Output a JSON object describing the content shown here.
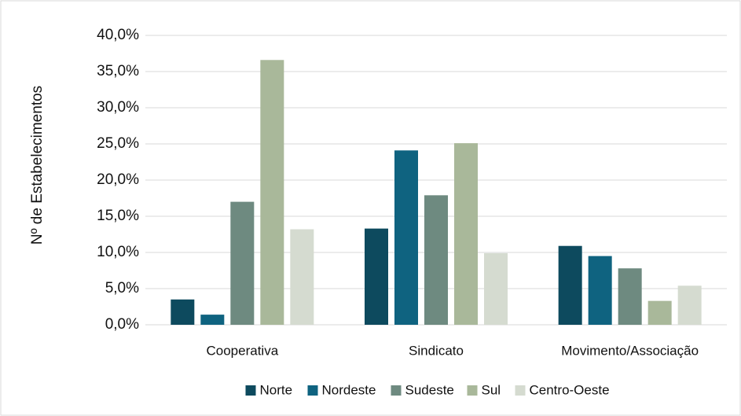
{
  "chart_data": {
    "type": "bar",
    "y_label": "Nº de Estabelecimentos",
    "categories": [
      "Cooperativa",
      "Sindicato",
      "Movimento/Associação"
    ],
    "series": [
      {
        "name": "Norte",
        "color": "#0d4a5e",
        "values": [
          3.5,
          13.3,
          10.9
        ]
      },
      {
        "name": "Nordeste",
        "color": "#0f6380",
        "values": [
          1.4,
          24.1,
          9.5
        ]
      },
      {
        "name": "Sudeste",
        "color": "#6e8a80",
        "values": [
          17.0,
          17.9,
          7.8
        ]
      },
      {
        "name": "Sul",
        "color": "#a9b89a",
        "values": [
          36.6,
          25.1,
          3.3
        ]
      },
      {
        "name": "Centro-Oeste",
        "color": "#d5dbd0",
        "values": [
          13.2,
          9.9,
          5.4
        ]
      }
    ],
    "ylim": [
      0,
      40
    ],
    "yticks": [
      {
        "value": 0,
        "label": "0,0%"
      },
      {
        "value": 5,
        "label": "5,0%"
      },
      {
        "value": 10,
        "label": "10,0%"
      },
      {
        "value": 15,
        "label": "15,0%"
      },
      {
        "value": 20,
        "label": "20,0%"
      },
      {
        "value": 25,
        "label": "25,0%"
      },
      {
        "value": 30,
        "label": "30,0%"
      },
      {
        "value": 35,
        "label": "35,0%"
      },
      {
        "value": 40,
        "label": "40,0%"
      }
    ],
    "grid": true
  }
}
